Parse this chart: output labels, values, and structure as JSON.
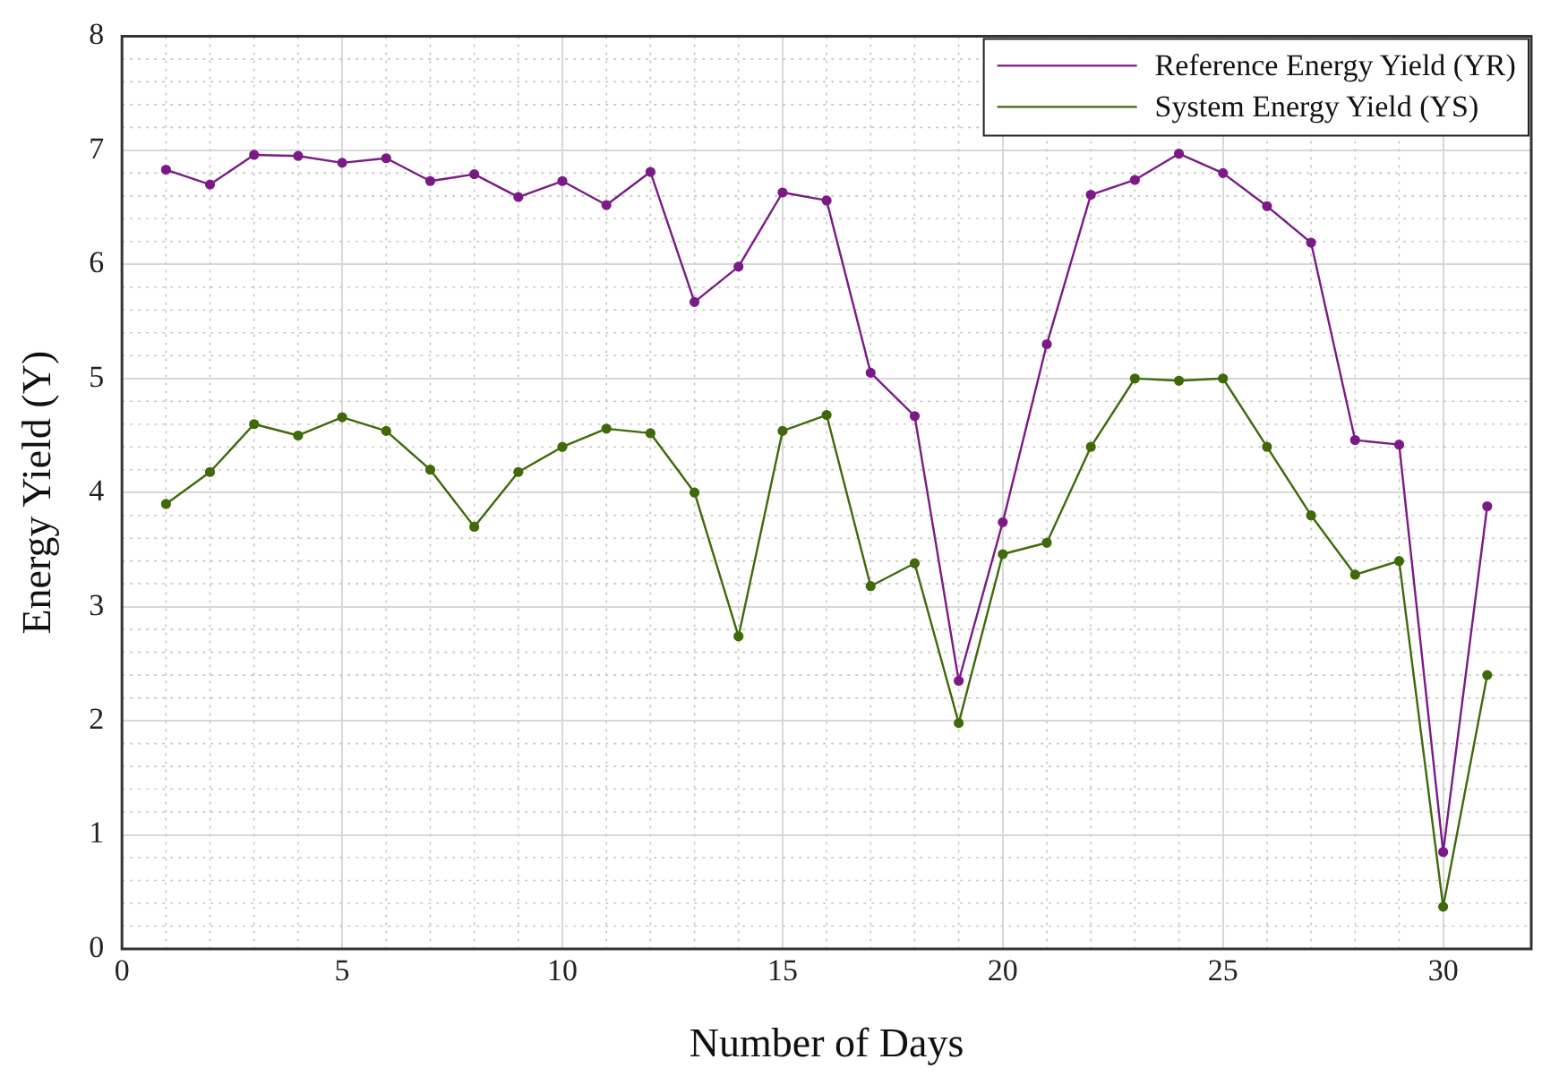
{
  "chart_data": {
    "type": "line",
    "xlabel": "Number of Days",
    "ylabel": "Energy Yield (Y)",
    "x": [
      1,
      2,
      3,
      4,
      5,
      6,
      7,
      8,
      9,
      10,
      11,
      12,
      13,
      14,
      15,
      16,
      17,
      18,
      19,
      20,
      21,
      22,
      23,
      24,
      25,
      26,
      27,
      28,
      29,
      30,
      31
    ],
    "series": [
      {
        "name": "Reference Energy Yield (YR)",
        "color": "#7b1a87",
        "values": [
          6.83,
          6.7,
          6.96,
          6.95,
          6.89,
          6.93,
          6.73,
          6.79,
          6.59,
          6.73,
          6.52,
          6.81,
          5.67,
          5.98,
          6.63,
          6.56,
          5.05,
          4.67,
          2.35,
          3.74,
          5.3,
          6.61,
          6.74,
          6.97,
          6.8,
          6.51,
          6.19,
          4.46,
          4.42,
          0.85,
          3.88
        ]
      },
      {
        "name": "System Energy Yield (YS)",
        "color": "#3e6a0a",
        "values": [
          3.9,
          4.18,
          4.6,
          4.5,
          4.66,
          4.54,
          4.2,
          3.7,
          4.18,
          4.4,
          4.56,
          4.52,
          4.0,
          2.74,
          4.54,
          4.68,
          3.18,
          3.38,
          1.98,
          3.46,
          3.56,
          4.4,
          5.0,
          4.98,
          5.0,
          4.4,
          3.8,
          3.28,
          3.4,
          0.37,
          2.4
        ]
      }
    ],
    "xlim": [
      0,
      32
    ],
    "xticks": [
      0,
      5,
      10,
      15,
      20,
      25,
      30
    ],
    "ylim": [
      0,
      8
    ],
    "yticks": [
      0,
      1,
      2,
      3,
      4,
      5,
      6,
      7,
      8
    ],
    "grid": true,
    "legend": "top right",
    "marker": "circle",
    "line_style": "solid"
  }
}
